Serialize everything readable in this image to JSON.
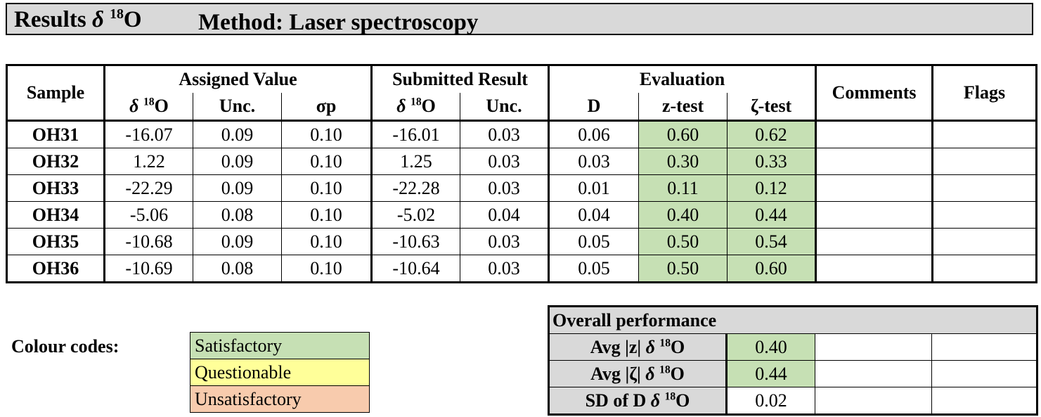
{
  "title": {
    "results_prefix": "Results ",
    "delta_symbol": "δ",
    "iso_mass": "18",
    "element": "O",
    "method": "Method: Laser spectroscopy"
  },
  "table": {
    "headers": {
      "sample": "Sample",
      "assigned_value": "Assigned Value",
      "submitted_result": "Submitted Result",
      "evaluation": "Evaluation",
      "comments": "Comments",
      "flags": "Flags",
      "unc": "Unc.",
      "sigma_p": "σp",
      "d": "D",
      "z_test": "z-test",
      "zeta_test": "ζ-test"
    },
    "rows": [
      {
        "sample": "OH31",
        "assigned": "-16.07",
        "assigned_unc": "0.09",
        "sigma_p": "0.10",
        "submitted": "-16.01",
        "submitted_unc": "0.03",
        "d": "0.06",
        "z": "0.60",
        "zeta": "0.62",
        "comments": "",
        "flags": ""
      },
      {
        "sample": "OH32",
        "assigned": "1.22",
        "assigned_unc": "0.09",
        "sigma_p": "0.10",
        "submitted": "1.25",
        "submitted_unc": "0.03",
        "d": "0.03",
        "z": "0.30",
        "zeta": "0.33",
        "comments": "",
        "flags": ""
      },
      {
        "sample": "OH33",
        "assigned": "-22.29",
        "assigned_unc": "0.09",
        "sigma_p": "0.10",
        "submitted": "-22.28",
        "submitted_unc": "0.03",
        "d": "0.01",
        "z": "0.11",
        "zeta": "0.12",
        "comments": "",
        "flags": ""
      },
      {
        "sample": "OH34",
        "assigned": "-5.06",
        "assigned_unc": "0.08",
        "sigma_p": "0.10",
        "submitted": "-5.02",
        "submitted_unc": "0.04",
        "d": "0.04",
        "z": "0.40",
        "zeta": "0.44",
        "comments": "",
        "flags": ""
      },
      {
        "sample": "OH35",
        "assigned": "-10.68",
        "assigned_unc": "0.09",
        "sigma_p": "0.10",
        "submitted": "-10.63",
        "submitted_unc": "0.03",
        "d": "0.05",
        "z": "0.50",
        "zeta": "0.54",
        "comments": "",
        "flags": ""
      },
      {
        "sample": "OH36",
        "assigned": "-10.69",
        "assigned_unc": "0.08",
        "sigma_p": "0.10",
        "submitted": "-10.64",
        "submitted_unc": "0.03",
        "d": "0.05",
        "z": "0.50",
        "zeta": "0.60",
        "comments": "",
        "flags": ""
      }
    ]
  },
  "legend": {
    "label": "Colour codes:",
    "satisfactory": "Satisfactory",
    "questionable": "Questionable",
    "unsatisfactory": "Unsatisfactory"
  },
  "overall": {
    "title": "Overall performance",
    "avg_z_label": "Avg |z| ",
    "avg_z": "0.40",
    "avg_zeta_label": "Avg |ζ| ",
    "avg_zeta": "0.44",
    "sd_d_label": "SD of D ",
    "sd_d": "0.02"
  },
  "colors": {
    "satisfactory": "#c6e0b4",
    "questionable": "#ffff99",
    "unsatisfactory": "#f8cbad",
    "header_gray": "#d9d9d9"
  }
}
